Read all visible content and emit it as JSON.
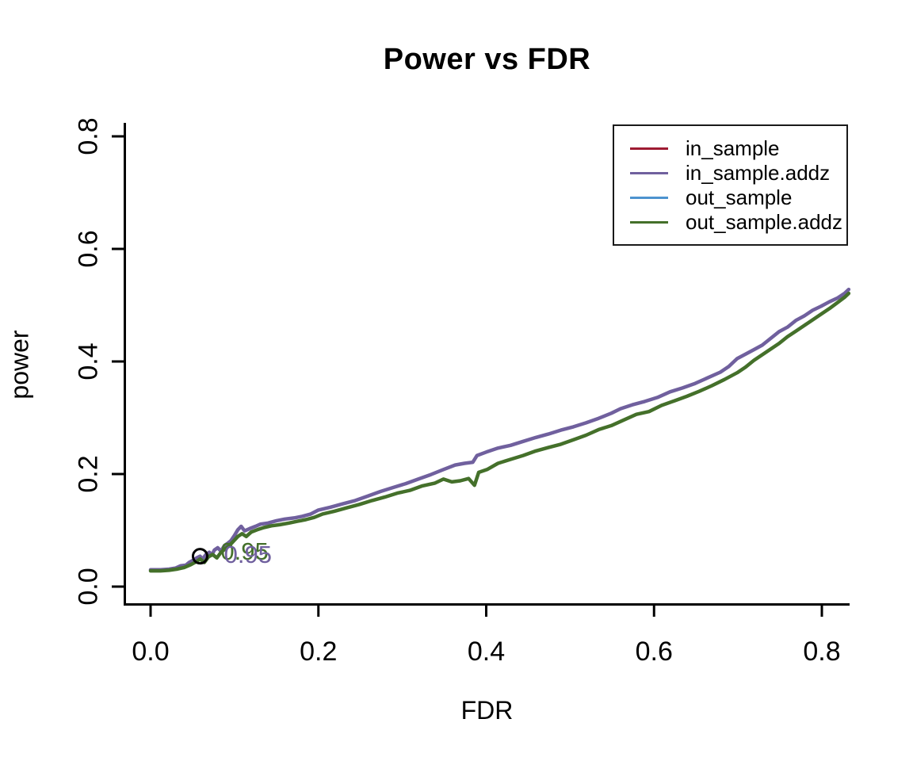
{
  "chart_data": {
    "type": "line",
    "title": "Power vs FDR",
    "xlabel": "FDR",
    "ylabel": "power",
    "xlim": [
      0.0,
      0.84
    ],
    "ylim": [
      0.0,
      0.8
    ],
    "grid": false,
    "legend_position": "top-right",
    "x_tick_labels": [
      "0.0",
      "0.2",
      "0.4",
      "0.6",
      "0.8"
    ],
    "x_tick_values": [
      0.0,
      0.2,
      0.4,
      0.6,
      0.8
    ],
    "y_tick_labels": [
      "0.0",
      "0.2",
      "0.4",
      "0.6",
      "0.8"
    ],
    "y_tick_values": [
      0.0,
      0.2,
      0.4,
      0.6,
      0.8
    ],
    "series": [
      {
        "name": "in_sample.addz",
        "color": "#70609E",
        "points": [
          [
            0.0,
            0.03
          ],
          [
            0.012,
            0.03
          ],
          [
            0.022,
            0.031
          ],
          [
            0.03,
            0.033
          ],
          [
            0.036,
            0.037
          ],
          [
            0.042,
            0.038
          ],
          [
            0.046,
            0.043
          ],
          [
            0.051,
            0.047
          ],
          [
            0.055,
            0.051
          ],
          [
            0.059,
            0.054
          ],
          [
            0.062,
            0.049
          ],
          [
            0.066,
            0.057
          ],
          [
            0.07,
            0.061
          ],
          [
            0.073,
            0.056
          ],
          [
            0.076,
            0.065
          ],
          [
            0.08,
            0.069
          ],
          [
            0.084,
            0.063
          ],
          [
            0.088,
            0.073
          ],
          [
            0.092,
            0.077
          ],
          [
            0.096,
            0.082
          ],
          [
            0.1,
            0.091
          ],
          [
            0.104,
            0.101
          ],
          [
            0.108,
            0.107
          ],
          [
            0.112,
            0.099
          ],
          [
            0.118,
            0.103
          ],
          [
            0.125,
            0.107
          ],
          [
            0.131,
            0.111
          ],
          [
            0.14,
            0.113
          ],
          [
            0.15,
            0.117
          ],
          [
            0.16,
            0.12
          ],
          [
            0.171,
            0.122
          ],
          [
            0.181,
            0.125
          ],
          [
            0.191,
            0.129
          ],
          [
            0.2,
            0.136
          ],
          [
            0.214,
            0.141
          ],
          [
            0.229,
            0.147
          ],
          [
            0.244,
            0.153
          ],
          [
            0.259,
            0.161
          ],
          [
            0.274,
            0.169
          ],
          [
            0.289,
            0.176
          ],
          [
            0.304,
            0.183
          ],
          [
            0.319,
            0.191
          ],
          [
            0.334,
            0.199
          ],
          [
            0.349,
            0.208
          ],
          [
            0.363,
            0.216
          ],
          [
            0.374,
            0.219
          ],
          [
            0.384,
            0.221
          ],
          [
            0.389,
            0.233
          ],
          [
            0.4,
            0.239
          ],
          [
            0.414,
            0.246
          ],
          [
            0.429,
            0.251
          ],
          [
            0.444,
            0.258
          ],
          [
            0.459,
            0.265
          ],
          [
            0.474,
            0.271
          ],
          [
            0.489,
            0.278
          ],
          [
            0.504,
            0.284
          ],
          [
            0.519,
            0.291
          ],
          [
            0.534,
            0.299
          ],
          [
            0.549,
            0.308
          ],
          [
            0.56,
            0.316
          ],
          [
            0.574,
            0.323
          ],
          [
            0.589,
            0.329
          ],
          [
            0.604,
            0.336
          ],
          [
            0.619,
            0.346
          ],
          [
            0.634,
            0.353
          ],
          [
            0.649,
            0.361
          ],
          [
            0.664,
            0.371
          ],
          [
            0.679,
            0.381
          ],
          [
            0.689,
            0.391
          ],
          [
            0.699,
            0.405
          ],
          [
            0.709,
            0.413
          ],
          [
            0.719,
            0.421
          ],
          [
            0.729,
            0.429
          ],
          [
            0.739,
            0.441
          ],
          [
            0.749,
            0.453
          ],
          [
            0.759,
            0.461
          ],
          [
            0.769,
            0.473
          ],
          [
            0.779,
            0.481
          ],
          [
            0.789,
            0.491
          ],
          [
            0.799,
            0.498
          ],
          [
            0.809,
            0.506
          ],
          [
            0.819,
            0.513
          ],
          [
            0.827,
            0.521
          ],
          [
            0.832,
            0.528
          ]
        ]
      },
      {
        "name": "out_sample.addz",
        "color": "#44702A",
        "points": [
          [
            0.0,
            0.028
          ],
          [
            0.012,
            0.028
          ],
          [
            0.022,
            0.029
          ],
          [
            0.031,
            0.031
          ],
          [
            0.04,
            0.034
          ],
          [
            0.048,
            0.039
          ],
          [
            0.054,
            0.044
          ],
          [
            0.059,
            0.049
          ],
          [
            0.064,
            0.043
          ],
          [
            0.069,
            0.053
          ],
          [
            0.074,
            0.057
          ],
          [
            0.079,
            0.051
          ],
          [
            0.084,
            0.061
          ],
          [
            0.089,
            0.067
          ],
          [
            0.094,
            0.073
          ],
          [
            0.099,
            0.081
          ],
          [
            0.104,
            0.089
          ],
          [
            0.109,
            0.094
          ],
          [
            0.114,
            0.089
          ],
          [
            0.12,
            0.097
          ],
          [
            0.127,
            0.101
          ],
          [
            0.135,
            0.105
          ],
          [
            0.144,
            0.108
          ],
          [
            0.154,
            0.11
          ],
          [
            0.165,
            0.113
          ],
          [
            0.175,
            0.116
          ],
          [
            0.185,
            0.119
          ],
          [
            0.195,
            0.123
          ],
          [
            0.205,
            0.129
          ],
          [
            0.219,
            0.134
          ],
          [
            0.234,
            0.14
          ],
          [
            0.249,
            0.146
          ],
          [
            0.264,
            0.153
          ],
          [
            0.279,
            0.159
          ],
          [
            0.294,
            0.166
          ],
          [
            0.309,
            0.171
          ],
          [
            0.324,
            0.179
          ],
          [
            0.339,
            0.184
          ],
          [
            0.349,
            0.191
          ],
          [
            0.359,
            0.186
          ],
          [
            0.369,
            0.188
          ],
          [
            0.379,
            0.192
          ],
          [
            0.386,
            0.18
          ],
          [
            0.391,
            0.203
          ],
          [
            0.401,
            0.208
          ],
          [
            0.414,
            0.219
          ],
          [
            0.429,
            0.226
          ],
          [
            0.444,
            0.233
          ],
          [
            0.459,
            0.241
          ],
          [
            0.474,
            0.247
          ],
          [
            0.489,
            0.253
          ],
          [
            0.504,
            0.261
          ],
          [
            0.519,
            0.269
          ],
          [
            0.534,
            0.279
          ],
          [
            0.549,
            0.286
          ],
          [
            0.564,
            0.296
          ],
          [
            0.579,
            0.306
          ],
          [
            0.594,
            0.311
          ],
          [
            0.609,
            0.322
          ],
          [
            0.624,
            0.33
          ],
          [
            0.639,
            0.338
          ],
          [
            0.654,
            0.347
          ],
          [
            0.669,
            0.357
          ],
          [
            0.684,
            0.368
          ],
          [
            0.699,
            0.38
          ],
          [
            0.709,
            0.39
          ],
          [
            0.719,
            0.402
          ],
          [
            0.729,
            0.412
          ],
          [
            0.739,
            0.422
          ],
          [
            0.749,
            0.432
          ],
          [
            0.759,
            0.444
          ],
          [
            0.769,
            0.454
          ],
          [
            0.779,
            0.464
          ],
          [
            0.789,
            0.474
          ],
          [
            0.799,
            0.484
          ],
          [
            0.809,
            0.494
          ],
          [
            0.819,
            0.505
          ],
          [
            0.827,
            0.514
          ],
          [
            0.832,
            0.521
          ]
        ]
      }
    ],
    "annotations": [
      {
        "text": "0.95",
        "color": "#44702A",
        "fdr": 0.112,
        "power": 0.062
      },
      {
        "text": "0.95",
        "color": "#70609E",
        "fdr": 0.116,
        "power": 0.056
      }
    ],
    "marker": {
      "shape": "open-circle",
      "color": "#000000",
      "fdr": 0.059,
      "power": 0.054
    }
  },
  "legend": {
    "items": [
      {
        "label": "in_sample",
        "color": "#9E1B32"
      },
      {
        "label": "in_sample.addz",
        "color": "#70609E"
      },
      {
        "label": "out_sample",
        "color": "#4C93CF"
      },
      {
        "label": "out_sample.addz",
        "color": "#44702A"
      }
    ]
  }
}
